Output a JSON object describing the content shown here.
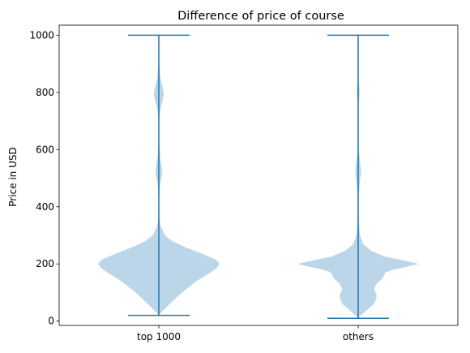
{
  "chart_data": {
    "type": "violin",
    "title": "Difference of price of course",
    "xlabel": "",
    "ylabel": "Price in USD",
    "categories": [
      "top 1000",
      "others"
    ],
    "ylim": [
      -15,
      1035
    ],
    "yticks": [
      0,
      200,
      400,
      600,
      800,
      1000
    ],
    "ytick_labels": [
      "0",
      "200",
      "400",
      "600",
      "800",
      "1000"
    ],
    "grid": false,
    "colors": {
      "body": "#1f77b4",
      "body_opacity": 0.3,
      "lines": "#1f77b4"
    },
    "series": [
      {
        "category": "top 1000",
        "min": 20,
        "max": 1000,
        "profile": [
          [
            20,
            0.0
          ],
          [
            30,
            0.04
          ],
          [
            60,
            0.18
          ],
          [
            100,
            0.38
          ],
          [
            140,
            0.62
          ],
          [
            170,
            0.85
          ],
          [
            185,
            0.95
          ],
          [
            200,
            1.0
          ],
          [
            215,
            0.94
          ],
          [
            235,
            0.72
          ],
          [
            260,
            0.42
          ],
          [
            280,
            0.22
          ],
          [
            300,
            0.1
          ],
          [
            330,
            0.03
          ],
          [
            360,
            0.01
          ],
          [
            400,
            0.004
          ],
          [
            440,
            0.008
          ],
          [
            480,
            0.02
          ],
          [
            510,
            0.05
          ],
          [
            530,
            0.055
          ],
          [
            560,
            0.03
          ],
          [
            600,
            0.012
          ],
          [
            650,
            0.004
          ],
          [
            700,
            0.006
          ],
          [
            740,
            0.025
          ],
          [
            770,
            0.06
          ],
          [
            795,
            0.085
          ],
          [
            820,
            0.06
          ],
          [
            850,
            0.025
          ],
          [
            900,
            0.008
          ],
          [
            950,
            0.004
          ],
          [
            975,
            0.006
          ],
          [
            1000,
            0.0
          ]
        ]
      },
      {
        "category": "others",
        "min": 10,
        "max": 1000,
        "profile": [
          [
            10,
            0.0
          ],
          [
            20,
            0.04
          ],
          [
            40,
            0.15
          ],
          [
            60,
            0.26
          ],
          [
            80,
            0.3
          ],
          [
            95,
            0.3
          ],
          [
            110,
            0.26
          ],
          [
            130,
            0.3
          ],
          [
            150,
            0.4
          ],
          [
            170,
            0.45
          ],
          [
            180,
            0.58
          ],
          [
            190,
            0.8
          ],
          [
            200,
            1.0
          ],
          [
            210,
            0.8
          ],
          [
            225,
            0.45
          ],
          [
            245,
            0.22
          ],
          [
            270,
            0.08
          ],
          [
            300,
            0.03
          ],
          [
            350,
            0.012
          ],
          [
            400,
            0.006
          ],
          [
            450,
            0.012
          ],
          [
            500,
            0.035
          ],
          [
            525,
            0.05
          ],
          [
            550,
            0.035
          ],
          [
            600,
            0.01
          ],
          [
            700,
            0.005
          ],
          [
            760,
            0.01
          ],
          [
            800,
            0.025
          ],
          [
            840,
            0.01
          ],
          [
            900,
            0.004
          ],
          [
            1000,
            0.0
          ]
        ]
      }
    ]
  }
}
